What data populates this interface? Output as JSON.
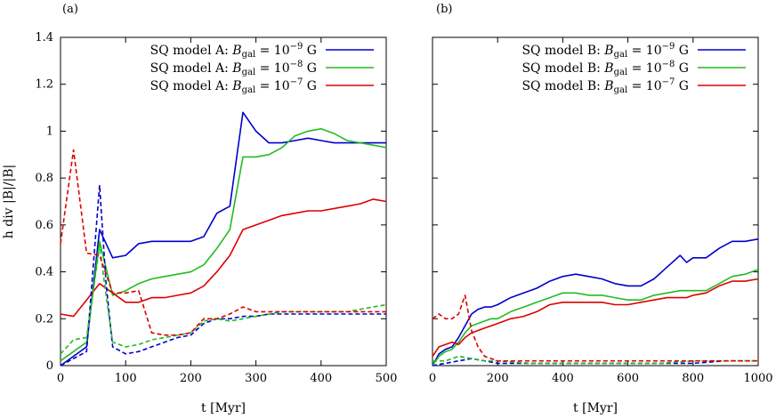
{
  "chart_data": [
    {
      "type": "line",
      "panel_label": "(a)",
      "xlabel": "t [Myr]",
      "ylabel": "h div |B|/|B|",
      "xlim": [
        0,
        500
      ],
      "ylim": [
        0,
        1.4
      ],
      "xticks": [
        0,
        100,
        200,
        300,
        400,
        500
      ],
      "yticks": [
        0,
        0.2,
        0.4,
        0.6,
        0.8,
        1,
        1.2,
        1.4
      ],
      "ytick_labels": [
        "0",
        "0.2",
        "0.4",
        "0.6",
        "0.8",
        "1",
        "1.2",
        "1.4"
      ],
      "grid": false,
      "legend_position": "top-right",
      "series": [
        {
          "name": "SQ model A: B_gal = 10^-9 G",
          "legend": {
            "prefix": "SQ model A: ",
            "sym": "B",
            "sub": "gal",
            "mid": " = 10",
            "exp": "−9",
            "suffix": " G"
          },
          "color": "#0000cc",
          "style": "solid",
          "in_legend": true,
          "x": [
            0,
            20,
            40,
            60,
            80,
            100,
            120,
            140,
            160,
            180,
            200,
            220,
            240,
            260,
            280,
            300,
            320,
            340,
            360,
            380,
            400,
            420,
            440,
            460,
            480,
            500
          ],
          "y": [
            0.0,
            0.04,
            0.08,
            0.58,
            0.46,
            0.47,
            0.52,
            0.53,
            0.53,
            0.53,
            0.53,
            0.55,
            0.65,
            0.68,
            1.08,
            1.0,
            0.95,
            0.95,
            0.96,
            0.97,
            0.96,
            0.95,
            0.95,
            0.95,
            0.95,
            0.95
          ]
        },
        {
          "name": "SQ model A: B_gal = 10^-8 G",
          "legend": {
            "prefix": "SQ model A: ",
            "sym": "B",
            "sub": "gal",
            "mid": " = 10",
            "exp": "−8",
            "suffix": " G"
          },
          "color": "#22bb22",
          "style": "solid",
          "in_legend": true,
          "x": [
            0,
            20,
            40,
            60,
            80,
            100,
            120,
            140,
            160,
            180,
            200,
            220,
            240,
            260,
            280,
            300,
            320,
            340,
            360,
            380,
            400,
            420,
            440,
            460,
            480,
            500
          ],
          "y": [
            0.02,
            0.06,
            0.1,
            0.53,
            0.3,
            0.32,
            0.35,
            0.37,
            0.38,
            0.39,
            0.4,
            0.43,
            0.5,
            0.58,
            0.89,
            0.89,
            0.9,
            0.93,
            0.98,
            1.0,
            1.01,
            0.99,
            0.96,
            0.95,
            0.94,
            0.93
          ]
        },
        {
          "name": "SQ model A: B_gal = 10^-7 G",
          "legend": {
            "prefix": "SQ model A: ",
            "sym": "B",
            "sub": "gal",
            "mid": " = 10",
            "exp": "−7",
            "suffix": " G"
          },
          "color": "#dd0000",
          "style": "solid",
          "in_legend": true,
          "x": [
            0,
            20,
            40,
            60,
            80,
            100,
            120,
            140,
            160,
            180,
            200,
            220,
            240,
            260,
            280,
            300,
            320,
            340,
            360,
            380,
            400,
            420,
            440,
            460,
            480,
            500
          ],
          "y": [
            0.22,
            0.21,
            0.28,
            0.35,
            0.31,
            0.27,
            0.27,
            0.29,
            0.29,
            0.3,
            0.31,
            0.34,
            0.4,
            0.47,
            0.58,
            0.6,
            0.62,
            0.64,
            0.65,
            0.66,
            0.66,
            0.67,
            0.68,
            0.69,
            0.71,
            0.7
          ]
        },
        {
          "name": "",
          "color": "#0000cc",
          "style": "dashed",
          "in_legend": false,
          "x": [
            0,
            20,
            40,
            60,
            70,
            80,
            100,
            120,
            140,
            160,
            180,
            200,
            220,
            240,
            260,
            280,
            300,
            320,
            340,
            360,
            380,
            400,
            420,
            440,
            460,
            480,
            500
          ],
          "y": [
            0.0,
            0.03,
            0.06,
            0.77,
            0.35,
            0.08,
            0.05,
            0.06,
            0.08,
            0.1,
            0.12,
            0.13,
            0.18,
            0.2,
            0.2,
            0.21,
            0.21,
            0.22,
            0.22,
            0.22,
            0.22,
            0.22,
            0.22,
            0.22,
            0.22,
            0.22,
            0.22
          ]
        },
        {
          "name": "",
          "color": "#22bb22",
          "style": "dashed",
          "in_legend": false,
          "x": [
            0,
            20,
            40,
            60,
            70,
            80,
            100,
            120,
            140,
            160,
            180,
            200,
            220,
            240,
            260,
            280,
            300,
            320,
            340,
            360,
            380,
            400,
            420,
            440,
            460,
            480,
            500
          ],
          "y": [
            0.05,
            0.11,
            0.12,
            0.51,
            0.3,
            0.1,
            0.08,
            0.09,
            0.11,
            0.12,
            0.13,
            0.14,
            0.19,
            0.2,
            0.19,
            0.2,
            0.21,
            0.22,
            0.23,
            0.23,
            0.23,
            0.23,
            0.23,
            0.23,
            0.24,
            0.25,
            0.26
          ]
        },
        {
          "name": "",
          "color": "#dd0000",
          "style": "dashed",
          "in_legend": false,
          "x": [
            0,
            20,
            40,
            60,
            80,
            100,
            120,
            140,
            160,
            180,
            200,
            220,
            240,
            260,
            280,
            300,
            320,
            340,
            360,
            380,
            400,
            420,
            440,
            460,
            480,
            500
          ],
          "y": [
            0.52,
            0.92,
            0.48,
            0.47,
            0.31,
            0.31,
            0.32,
            0.14,
            0.13,
            0.13,
            0.14,
            0.2,
            0.2,
            0.22,
            0.25,
            0.23,
            0.23,
            0.23,
            0.23,
            0.23,
            0.23,
            0.23,
            0.23,
            0.23,
            0.23,
            0.23
          ]
        }
      ]
    },
    {
      "type": "line",
      "panel_label": "(b)",
      "xlabel": "t [Myr]",
      "ylabel": "",
      "xlim": [
        0,
        1000
      ],
      "ylim": [
        0,
        1.4
      ],
      "xticks": [
        0,
        200,
        400,
        600,
        800,
        1000
      ],
      "grid": false,
      "legend_position": "top-right",
      "series": [
        {
          "name": "SQ model B: B_gal = 10^-9 G",
          "legend": {
            "prefix": "SQ model B: ",
            "sym": "B",
            "sub": "gal",
            "mid": " = 10",
            "exp": "−9",
            "suffix": " G"
          },
          "color": "#0000cc",
          "style": "solid",
          "in_legend": true,
          "x": [
            0,
            20,
            40,
            60,
            80,
            100,
            120,
            140,
            160,
            180,
            200,
            240,
            280,
            320,
            360,
            400,
            440,
            480,
            520,
            560,
            600,
            640,
            680,
            720,
            760,
            780,
            800,
            840,
            880,
            920,
            960,
            1000
          ],
          "y": [
            0.0,
            0.05,
            0.07,
            0.08,
            0.12,
            0.17,
            0.22,
            0.24,
            0.25,
            0.25,
            0.26,
            0.29,
            0.31,
            0.33,
            0.36,
            0.38,
            0.39,
            0.38,
            0.37,
            0.35,
            0.34,
            0.34,
            0.37,
            0.42,
            0.47,
            0.44,
            0.46,
            0.46,
            0.5,
            0.53,
            0.53,
            0.54
          ]
        },
        {
          "name": "SQ model B: B_gal = 10^-8 G",
          "legend": {
            "prefix": "SQ model B: ",
            "sym": "B",
            "sub": "gal",
            "mid": " = 10",
            "exp": "−8",
            "suffix": " G"
          },
          "color": "#22bb22",
          "style": "solid",
          "in_legend": true,
          "x": [
            0,
            20,
            40,
            60,
            80,
            100,
            120,
            140,
            160,
            180,
            200,
            240,
            280,
            320,
            360,
            400,
            440,
            480,
            520,
            560,
            600,
            640,
            680,
            720,
            760,
            780,
            800,
            840,
            880,
            920,
            960,
            1000
          ],
          "y": [
            0.0,
            0.04,
            0.06,
            0.07,
            0.1,
            0.14,
            0.17,
            0.18,
            0.19,
            0.2,
            0.2,
            0.23,
            0.25,
            0.27,
            0.29,
            0.31,
            0.31,
            0.3,
            0.3,
            0.29,
            0.28,
            0.28,
            0.3,
            0.31,
            0.32,
            0.32,
            0.32,
            0.32,
            0.35,
            0.38,
            0.39,
            0.41
          ]
        },
        {
          "name": "SQ model B: B_gal = 10^-7 G",
          "legend": {
            "prefix": "SQ model B: ",
            "sym": "B",
            "sub": "gal",
            "mid": " = 10",
            "exp": "−7",
            "suffix": " G"
          },
          "color": "#dd0000",
          "style": "solid",
          "in_legend": true,
          "x": [
            0,
            20,
            40,
            60,
            80,
            100,
            120,
            140,
            160,
            180,
            200,
            240,
            280,
            320,
            360,
            400,
            440,
            480,
            520,
            560,
            600,
            640,
            680,
            720,
            760,
            780,
            800,
            840,
            880,
            920,
            960,
            1000
          ],
          "y": [
            0.04,
            0.08,
            0.09,
            0.1,
            0.09,
            0.12,
            0.14,
            0.15,
            0.16,
            0.17,
            0.18,
            0.2,
            0.21,
            0.23,
            0.26,
            0.27,
            0.27,
            0.27,
            0.27,
            0.26,
            0.26,
            0.27,
            0.28,
            0.29,
            0.29,
            0.29,
            0.3,
            0.31,
            0.34,
            0.36,
            0.36,
            0.37
          ]
        },
        {
          "name": "",
          "color": "#0000cc",
          "style": "dashed",
          "in_legend": false,
          "x": [
            0,
            40,
            80,
            120,
            160,
            200,
            300,
            400,
            500,
            600,
            700,
            800,
            900,
            1000
          ],
          "y": [
            0.0,
            0.01,
            0.02,
            0.03,
            0.02,
            0.01,
            0.01,
            0.01,
            0.01,
            0.01,
            0.01,
            0.01,
            0.02,
            0.02
          ]
        },
        {
          "name": "",
          "color": "#22bb22",
          "style": "dashed",
          "in_legend": false,
          "x": [
            0,
            40,
            80,
            120,
            160,
            200,
            300,
            400,
            500,
            600,
            700,
            800,
            900,
            1000
          ],
          "y": [
            0.02,
            0.02,
            0.04,
            0.03,
            0.02,
            0.02,
            0.01,
            0.01,
            0.01,
            0.01,
            0.01,
            0.02,
            0.02,
            0.02
          ]
        },
        {
          "name": "",
          "color": "#dd0000",
          "style": "dashed",
          "in_legend": false,
          "x": [
            0,
            20,
            40,
            60,
            80,
            100,
            120,
            140,
            160,
            180,
            200,
            300,
            400,
            500,
            600,
            700,
            800,
            900,
            1000
          ],
          "y": [
            0.2,
            0.22,
            0.2,
            0.2,
            0.22,
            0.3,
            0.15,
            0.08,
            0.04,
            0.03,
            0.02,
            0.02,
            0.02,
            0.02,
            0.02,
            0.02,
            0.02,
            0.02,
            0.02
          ]
        }
      ]
    }
  ]
}
